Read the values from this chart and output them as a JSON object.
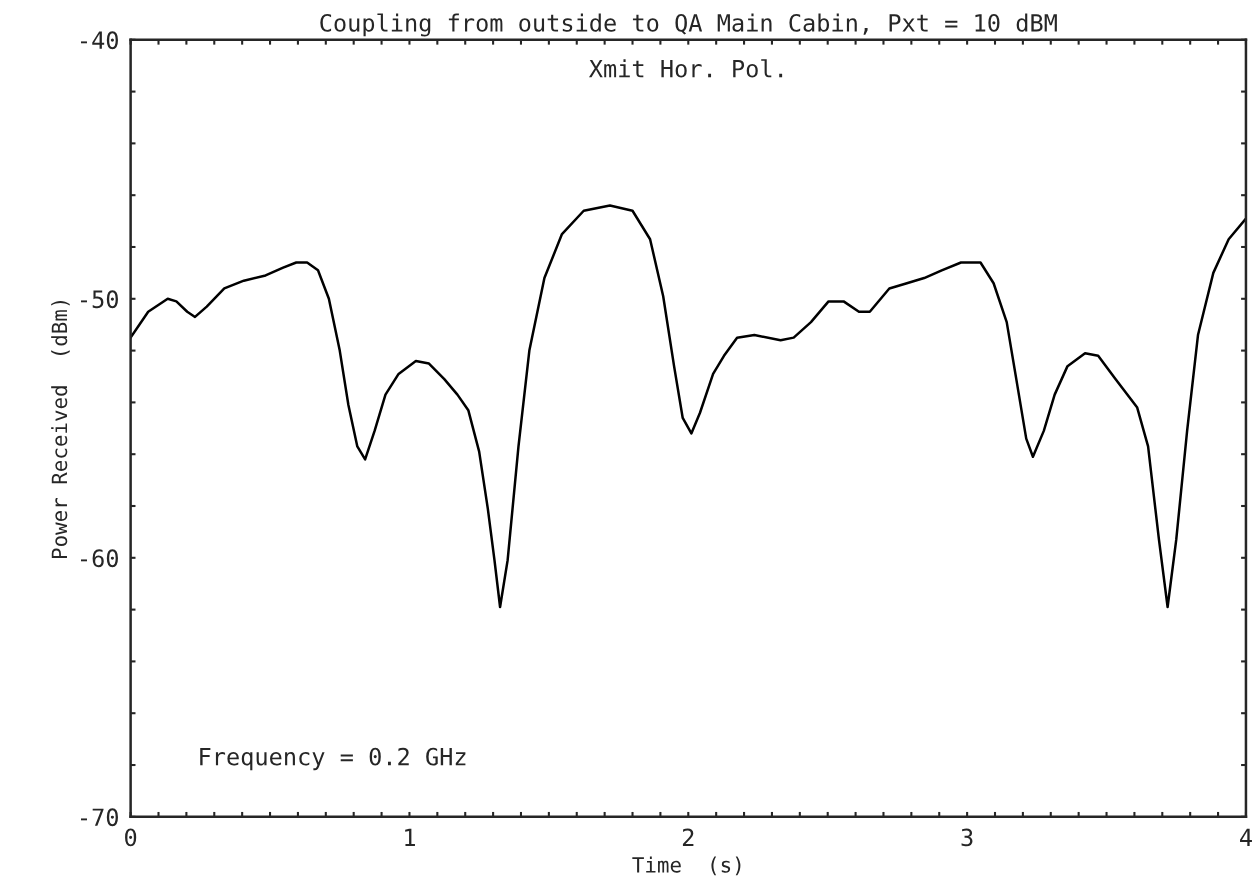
{
  "chart_data": {
    "type": "line",
    "title": "Coupling from outside to QA Main Cabin, Pxt = 10 dBM",
    "xlabel": "Time  (s)",
    "ylabel": "Power Received  (dBm)",
    "annotations": [
      "Xmit Hor. Pol.",
      "Frequency = 0.2 GHz"
    ],
    "x": [
      0,
      0.063,
      0.133,
      0.164,
      0.203,
      0.231,
      0.273,
      0.336,
      0.406,
      0.484,
      0.547,
      0.594,
      0.633,
      0.672,
      0.711,
      0.75,
      0.781,
      0.813,
      0.841,
      0.875,
      0.914,
      0.961,
      1.023,
      1.07,
      1.125,
      1.172,
      1.211,
      1.25,
      1.281,
      1.305,
      1.325,
      1.352,
      1.391,
      1.43,
      1.484,
      1.547,
      1.625,
      1.719,
      1.8,
      1.863,
      1.91,
      1.949,
      1.98,
      2.011,
      2.042,
      2.089,
      2.128,
      2.175,
      2.237,
      2.331,
      2.378,
      2.44,
      2.503,
      2.557,
      2.612,
      2.651,
      2.721,
      2.784,
      2.846,
      2.909,
      2.978,
      3.048,
      3.095,
      3.142,
      3.181,
      3.212,
      3.236,
      3.275,
      3.314,
      3.36,
      3.423,
      3.47,
      3.532,
      3.61,
      3.649,
      3.688,
      3.719,
      3.75,
      3.789,
      3.828,
      3.883,
      3.938,
      4.0
    ],
    "series": [
      {
        "color": "#000000",
        "values": [
          -51.5,
          -50.5,
          -50.0,
          -50.1,
          -50.5,
          -50.7,
          -50.3,
          -49.6,
          -49.3,
          -49.1,
          -48.8,
          -48.6,
          -48.6,
          -48.9,
          -50.0,
          -52.0,
          -54.1,
          -55.7,
          -56.2,
          -55.1,
          -53.7,
          -52.9,
          -52.4,
          -52.5,
          -53.1,
          -53.7,
          -54.3,
          -55.9,
          -58.1,
          -60.1,
          -61.9,
          -60.1,
          -55.7,
          -52.0,
          -49.2,
          -47.5,
          -46.6,
          -46.4,
          -46.6,
          -47.7,
          -49.9,
          -52.6,
          -54.6,
          -55.2,
          -54.4,
          -52.9,
          -52.2,
          -51.5,
          -51.4,
          -51.6,
          -51.5,
          -50.9,
          -50.1,
          -50.1,
          -50.5,
          -50.5,
          -49.6,
          -49.4,
          -49.2,
          -48.9,
          -48.6,
          -48.6,
          -49.4,
          -50.9,
          -53.4,
          -55.4,
          -56.1,
          -55.1,
          -53.7,
          -52.6,
          -52.1,
          -52.2,
          -53.1,
          -54.2,
          -55.7,
          -59.3,
          -61.9,
          -59.3,
          -55.1,
          -51.4,
          -49.0,
          -47.7,
          -46.9
        ]
      }
    ],
    "xlim": [
      0,
      4
    ],
    "ylim": [
      -70,
      -40
    ],
    "xticks": [
      0,
      {
        "value": 0.1,
        "label": null
      },
      {
        "value": 0.2,
        "label": null
      },
      {
        "value": 0.3,
        "label": null
      },
      {
        "value": 0.4,
        "label": null
      },
      {
        "value": 0.5,
        "label": null
      },
      {
        "value": 0.6,
        "label": null
      },
      {
        "value": 0.7,
        "label": null
      },
      {
        "value": 0.8,
        "label": null
      },
      {
        "value": 0.9,
        "label": null
      },
      1,
      {
        "value": 1.1,
        "label": null
      },
      {
        "value": 1.2,
        "label": null
      },
      {
        "value": 1.3,
        "label": null
      },
      {
        "value": 1.4,
        "label": null
      },
      {
        "value": 1.5,
        "label": null
      },
      {
        "value": 1.6,
        "label": null
      },
      {
        "value": 1.7,
        "label": null
      },
      {
        "value": 1.8,
        "label": null
      },
      {
        "value": 1.9,
        "label": null
      },
      2,
      {
        "value": 2.1,
        "label": null
      },
      {
        "value": 2.2,
        "label": null
      },
      {
        "value": 2.3,
        "label": null
      },
      {
        "value": 2.4,
        "label": null
      },
      {
        "value": 2.5,
        "label": null
      },
      {
        "value": 2.6,
        "label": null
      },
      {
        "value": 2.7,
        "label": null
      },
      {
        "value": 2.8,
        "label": null
      },
      {
        "value": 2.9,
        "label": null
      },
      3,
      {
        "value": 3.1,
        "label": null
      },
      {
        "value": 3.2,
        "label": null
      },
      {
        "value": 3.3,
        "label": null
      },
      {
        "value": 3.4,
        "label": null
      },
      {
        "value": 3.5,
        "label": null
      },
      {
        "value": 3.6,
        "label": null
      },
      {
        "value": 3.7,
        "label": null
      },
      {
        "value": 3.8,
        "label": null
      },
      {
        "value": 3.9,
        "label": null
      },
      4
    ],
    "yticks": [
      -70,
      {
        "value": -68,
        "label": null
      },
      {
        "value": -66,
        "label": null
      },
      {
        "value": -64,
        "label": null
      },
      {
        "value": -62,
        "label": null
      },
      -60,
      {
        "value": -58,
        "label": null
      },
      {
        "value": -56,
        "label": null
      },
      {
        "value": -54,
        "label": null
      },
      {
        "value": -52,
        "label": null
      },
      -50,
      {
        "value": -48,
        "label": null
      },
      {
        "value": -46,
        "label": null
      },
      {
        "value": -44,
        "label": null
      },
      {
        "value": -42,
        "label": null
      },
      -40
    ],
    "grid": false,
    "legend": false,
    "marker": "none",
    "line_style": "solid"
  }
}
